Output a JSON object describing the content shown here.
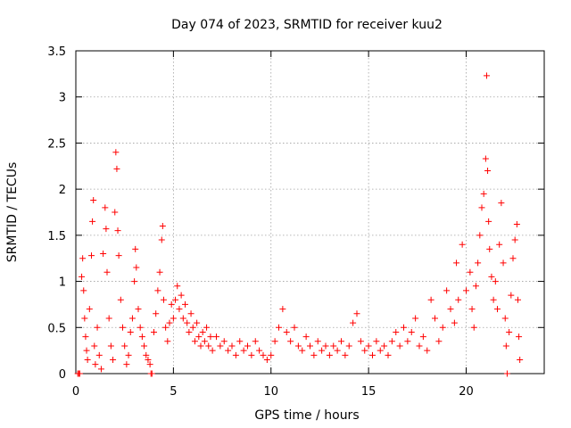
{
  "chart_data": {
    "type": "scatter",
    "title": "Day 074 of 2023, SRMTID for receiver kuu2",
    "xlabel": "GPS time / hours",
    "ylabel": "SRMTID / TECUs",
    "xlim": [
      0,
      24
    ],
    "ylim": [
      0,
      3.5
    ],
    "xticks": [
      0,
      5,
      10,
      15,
      20
    ],
    "yticks": [
      0,
      0.5,
      1,
      1.5,
      2,
      2.5,
      3,
      3.5
    ],
    "xtick_labels": [
      "0",
      "5",
      "10",
      "15",
      "20"
    ],
    "ytick_labels": [
      "0",
      "0.5",
      "1",
      "1.5",
      "2",
      "2.5",
      "3",
      "3.5"
    ],
    "grid": true,
    "marker": "+",
    "marker_color": "#ff0000",
    "series": [
      {
        "name": "SRMTID",
        "points": [
          [
            0.1,
            0.0
          ],
          [
            0.15,
            0.0
          ],
          [
            0.2,
            0.0
          ],
          [
            0.3,
            1.05
          ],
          [
            0.35,
            1.25
          ],
          [
            0.4,
            0.9
          ],
          [
            0.45,
            0.6
          ],
          [
            0.5,
            0.4
          ],
          [
            0.55,
            0.25
          ],
          [
            0.6,
            0.15
          ],
          [
            0.7,
            0.7
          ],
          [
            0.8,
            1.28
          ],
          [
            0.85,
            1.65
          ],
          [
            0.9,
            1.88
          ],
          [
            0.95,
            0.3
          ],
          [
            1.0,
            0.1
          ],
          [
            1.1,
            0.5
          ],
          [
            1.2,
            0.2
          ],
          [
            1.3,
            0.05
          ],
          [
            1.4,
            1.3
          ],
          [
            1.5,
            1.8
          ],
          [
            1.55,
            1.57
          ],
          [
            1.6,
            1.1
          ],
          [
            1.7,
            0.6
          ],
          [
            1.8,
            0.3
          ],
          [
            1.9,
            0.15
          ],
          [
            2.0,
            1.75
          ],
          [
            2.05,
            2.4
          ],
          [
            2.1,
            2.22
          ],
          [
            2.15,
            1.55
          ],
          [
            2.2,
            1.28
          ],
          [
            2.3,
            0.8
          ],
          [
            2.4,
            0.5
          ],
          [
            2.5,
            0.3
          ],
          [
            2.6,
            0.1
          ],
          [
            2.7,
            0.2
          ],
          [
            2.8,
            0.45
          ],
          [
            2.9,
            0.6
          ],
          [
            3.0,
            1.0
          ],
          [
            3.05,
            1.35
          ],
          [
            3.1,
            1.15
          ],
          [
            3.2,
            0.7
          ],
          [
            3.3,
            0.5
          ],
          [
            3.4,
            0.4
          ],
          [
            3.5,
            0.3
          ],
          [
            3.6,
            0.2
          ],
          [
            3.7,
            0.15
          ],
          [
            3.8,
            0.1
          ],
          [
            3.85,
            0.0
          ],
          [
            3.9,
            0.0
          ],
          [
            4.0,
            0.45
          ],
          [
            4.1,
            0.65
          ],
          [
            4.2,
            0.9
          ],
          [
            4.3,
            1.1
          ],
          [
            4.4,
            1.45
          ],
          [
            4.45,
            1.6
          ],
          [
            4.5,
            0.8
          ],
          [
            4.6,
            0.5
          ],
          [
            4.7,
            0.35
          ],
          [
            4.8,
            0.55
          ],
          [
            4.9,
            0.75
          ],
          [
            5.0,
            0.6
          ],
          [
            5.1,
            0.8
          ],
          [
            5.2,
            0.95
          ],
          [
            5.3,
            0.7
          ],
          [
            5.4,
            0.85
          ],
          [
            5.5,
            0.6
          ],
          [
            5.6,
            0.75
          ],
          [
            5.7,
            0.55
          ],
          [
            5.8,
            0.45
          ],
          [
            5.9,
            0.65
          ],
          [
            6.0,
            0.5
          ],
          [
            6.1,
            0.35
          ],
          [
            6.2,
            0.55
          ],
          [
            6.3,
            0.4
          ],
          [
            6.4,
            0.3
          ],
          [
            6.5,
            0.45
          ],
          [
            6.6,
            0.35
          ],
          [
            6.7,
            0.5
          ],
          [
            6.8,
            0.3
          ],
          [
            6.9,
            0.4
          ],
          [
            7.0,
            0.25
          ],
          [
            7.2,
            0.4
          ],
          [
            7.4,
            0.3
          ],
          [
            7.6,
            0.35
          ],
          [
            7.8,
            0.25
          ],
          [
            8.0,
            0.3
          ],
          [
            8.2,
            0.2
          ],
          [
            8.4,
            0.35
          ],
          [
            8.6,
            0.25
          ],
          [
            8.8,
            0.3
          ],
          [
            9.0,
            0.2
          ],
          [
            9.2,
            0.35
          ],
          [
            9.4,
            0.25
          ],
          [
            9.6,
            0.2
          ],
          [
            9.8,
            0.15
          ],
          [
            10.0,
            0.2
          ],
          [
            10.2,
            0.35
          ],
          [
            10.4,
            0.5
          ],
          [
            10.6,
            0.7
          ],
          [
            10.8,
            0.45
          ],
          [
            11.0,
            0.35
          ],
          [
            11.2,
            0.5
          ],
          [
            11.4,
            0.3
          ],
          [
            11.6,
            0.25
          ],
          [
            11.8,
            0.4
          ],
          [
            12.0,
            0.3
          ],
          [
            12.2,
            0.2
          ],
          [
            12.4,
            0.35
          ],
          [
            12.6,
            0.25
          ],
          [
            12.8,
            0.3
          ],
          [
            13.0,
            0.2
          ],
          [
            13.2,
            0.3
          ],
          [
            13.4,
            0.25
          ],
          [
            13.6,
            0.35
          ],
          [
            13.8,
            0.2
          ],
          [
            14.0,
            0.3
          ],
          [
            14.2,
            0.55
          ],
          [
            14.4,
            0.65
          ],
          [
            14.6,
            0.35
          ],
          [
            14.8,
            0.25
          ],
          [
            15.0,
            0.3
          ],
          [
            15.2,
            0.2
          ],
          [
            15.4,
            0.35
          ],
          [
            15.6,
            0.25
          ],
          [
            15.8,
            0.3
          ],
          [
            16.0,
            0.2
          ],
          [
            16.2,
            0.35
          ],
          [
            16.4,
            0.45
          ],
          [
            16.6,
            0.3
          ],
          [
            16.8,
            0.5
          ],
          [
            17.0,
            0.35
          ],
          [
            17.2,
            0.45
          ],
          [
            17.4,
            0.6
          ],
          [
            17.6,
            0.3
          ],
          [
            17.8,
            0.4
          ],
          [
            18.0,
            0.25
          ],
          [
            18.2,
            0.8
          ],
          [
            18.4,
            0.6
          ],
          [
            18.6,
            0.35
          ],
          [
            18.8,
            0.5
          ],
          [
            19.0,
            0.9
          ],
          [
            19.2,
            0.7
          ],
          [
            19.4,
            0.55
          ],
          [
            19.5,
            1.2
          ],
          [
            19.6,
            0.8
          ],
          [
            19.8,
            1.4
          ],
          [
            20.0,
            0.9
          ],
          [
            20.2,
            1.1
          ],
          [
            20.3,
            0.7
          ],
          [
            20.4,
            0.5
          ],
          [
            20.5,
            0.95
          ],
          [
            20.6,
            1.2
          ],
          [
            20.7,
            1.5
          ],
          [
            20.8,
            1.8
          ],
          [
            20.9,
            1.95
          ],
          [
            21.0,
            2.33
          ],
          [
            21.05,
            3.23
          ],
          [
            21.1,
            2.2
          ],
          [
            21.15,
            1.65
          ],
          [
            21.2,
            1.35
          ],
          [
            21.3,
            1.05
          ],
          [
            21.4,
            0.8
          ],
          [
            21.5,
            1.0
          ],
          [
            21.6,
            0.7
          ],
          [
            21.7,
            1.4
          ],
          [
            21.8,
            1.85
          ],
          [
            21.9,
            1.2
          ],
          [
            22.0,
            0.6
          ],
          [
            22.05,
            0.3
          ],
          [
            22.1,
            0.0
          ],
          [
            22.2,
            0.45
          ],
          [
            22.3,
            0.85
          ],
          [
            22.4,
            1.25
          ],
          [
            22.5,
            1.45
          ],
          [
            22.6,
            1.62
          ],
          [
            22.65,
            0.8
          ],
          [
            22.7,
            0.4
          ],
          [
            22.75,
            0.15
          ]
        ]
      }
    ]
  }
}
